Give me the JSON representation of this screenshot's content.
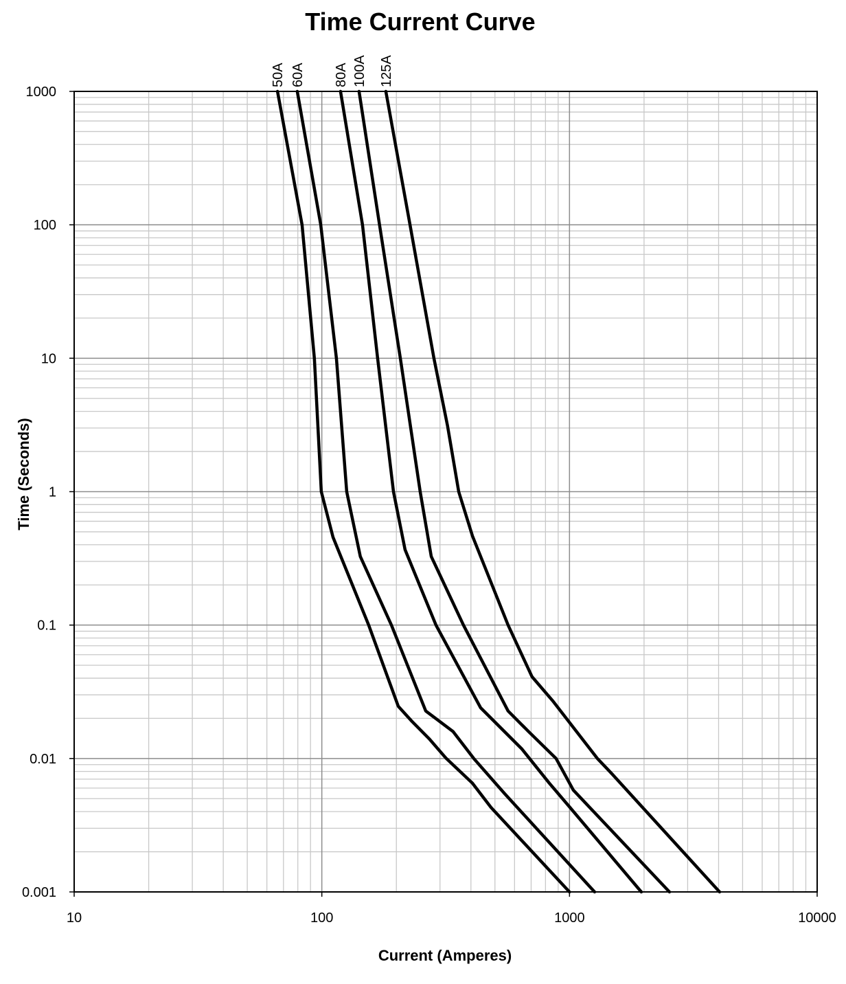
{
  "chart_data": {
    "type": "line",
    "title": "Time Current Curve",
    "x_label": "Current  (Amperes)",
    "y_label": "Time (Seconds)",
    "x_scale": "log",
    "y_scale": "log",
    "xlim": [
      10,
      10000
    ],
    "ylim": [
      0.001,
      1000
    ],
    "xticks": [
      10,
      100,
      1000,
      10000
    ],
    "yticks": [
      0.001,
      0.01,
      0.1,
      1,
      10,
      100,
      1000
    ],
    "grid": true,
    "minor_grid": true,
    "series": [
      {
        "name": "50A",
        "color": "#000000",
        "x": [
          66.2,
          83.2,
          93.3,
          99.5,
          111,
          154.6,
          203.5,
          231,
          271,
          318,
          405.6,
          482,
          1000
        ],
        "values": [
          1000,
          100,
          10,
          1,
          0.455,
          0.1,
          0.0246,
          0.019,
          0.0141,
          0.01,
          0.00653,
          0.0043,
          0.001
        ]
      },
      {
        "name": "60A",
        "color": "#000000",
        "x": [
          79.6,
          99,
          114.5,
          126,
          143,
          191,
          262.7,
          339,
          410.7,
          547,
          1263
        ],
        "values": [
          1000,
          100,
          10,
          1,
          0.327,
          0.1,
          0.0227,
          0.0159,
          0.01,
          0.00546,
          0.001
        ]
      },
      {
        "name": "80A",
        "color": "#000000",
        "x": [
          119,
          146,
          168,
          194.6,
          216.8,
          289,
          437.6,
          642,
          829,
          1004,
          1950
        ],
        "values": [
          1000,
          100,
          10,
          1,
          0.367,
          0.1,
          0.024,
          0.0118,
          0.00653,
          0.0043,
          0.001
        ]
      },
      {
        "name": "100A",
        "color": "#000000",
        "x": [
          141.4,
          171,
          207.5,
          249.5,
          276.5,
          373,
          565,
          684,
          883,
          1036,
          2533
        ],
        "values": [
          1000,
          100,
          10,
          1,
          0.327,
          0.1,
          0.0227,
          0.0159,
          0.01,
          0.0058,
          0.001
        ]
      },
      {
        "name": "125A",
        "color": "#000000",
        "x": [
          181.4,
          227,
          283.6,
          322,
          357,
          405.6,
          565,
          706,
          855,
          1296,
          1472,
          4036
        ],
        "values": [
          1000,
          100,
          10,
          3.1,
          1,
          0.466,
          0.1,
          0.041,
          0.0271,
          0.01,
          0.0078,
          0.001
        ]
      }
    ]
  }
}
